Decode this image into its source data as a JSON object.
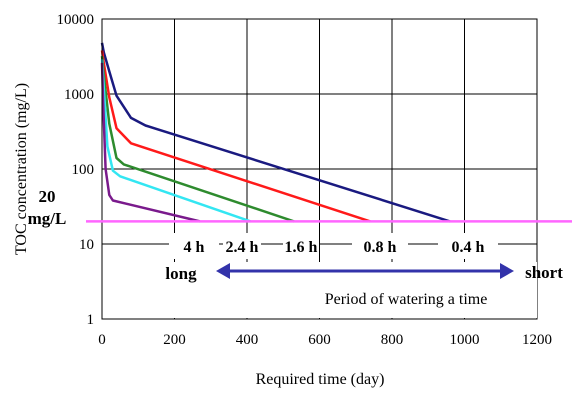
{
  "chart_data": {
    "type": "line",
    "title": "",
    "xlabel": "Required time (day)",
    "ylabel": "TOC concentration (mg/L)",
    "xlim": [
      0,
      1200
    ],
    "ylim": [
      1,
      10000
    ],
    "y_scale": "log",
    "grid": true,
    "x_ticks": [
      "0",
      "200",
      "400",
      "600",
      "800",
      "1000",
      "1200"
    ],
    "y_ticks": [
      "1",
      "10",
      "100",
      "1000",
      "10000"
    ],
    "series": [
      {
        "name": "0.4 h",
        "color": "#1a1a80",
        "x": [
          0,
          5,
          20,
          40,
          80,
          120,
          960
        ],
        "y": [
          4800,
          3600,
          2000,
          950,
          480,
          380,
          20
        ]
      },
      {
        "name": "0.8 h",
        "color": "#ff1a1a",
        "x": [
          0,
          5,
          20,
          40,
          80,
          740
        ],
        "y": [
          3800,
          2600,
          900,
          350,
          220,
          20
        ]
      },
      {
        "name": "1.6 h",
        "color": "#2e8b2e",
        "x": [
          0,
          5,
          20,
          40,
          60,
          530
        ],
        "y": [
          3200,
          1800,
          400,
          140,
          115,
          20
        ]
      },
      {
        "name": "2.4 h",
        "color": "#33e6f2",
        "x": [
          0,
          5,
          15,
          30,
          50,
          410
        ],
        "y": [
          2900,
          1200,
          200,
          95,
          80,
          20
        ]
      },
      {
        "name": "4 h",
        "color": "#7a1a8c",
        "x": [
          0,
          3,
          10,
          20,
          30,
          270
        ],
        "y": [
          2600,
          800,
          100,
          45,
          38,
          20
        ]
      }
    ],
    "reference_line": {
      "value": 20,
      "color": "#ff66ff",
      "label_value": "20",
      "label_unit": "mg/L"
    },
    "annotations": {
      "long": "long",
      "short": "short",
      "caption": "Period of watering a time",
      "arrow_color": "#3333aa"
    }
  }
}
